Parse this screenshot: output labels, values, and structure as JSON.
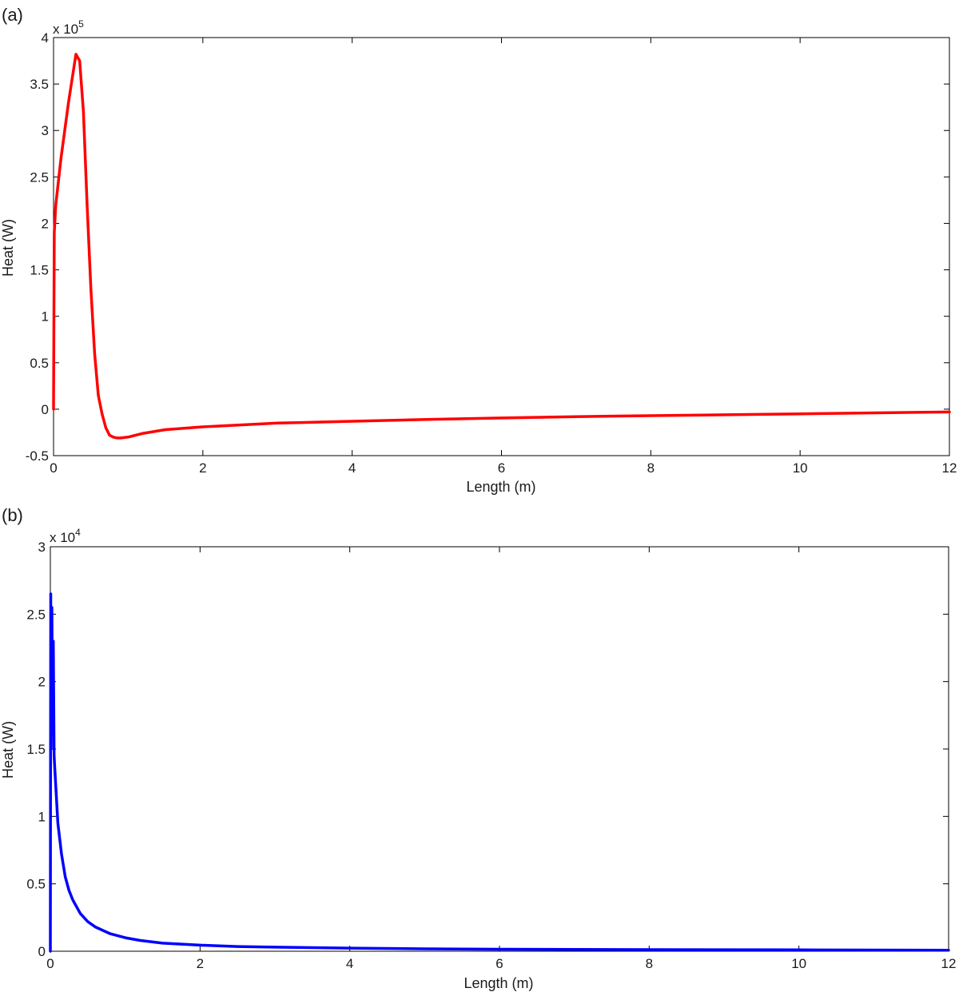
{
  "chart_data": [
    {
      "type": "line",
      "panel_label": "(a)",
      "title": "",
      "xlabel": "Length (m)",
      "ylabel": "Heat (W)",
      "y_multiplier": {
        "base": "x 10",
        "exponent": "5"
      },
      "xlim": [
        0,
        12
      ],
      "ylim": [
        -0.5,
        4
      ],
      "x_ticks": [
        0,
        2,
        4,
        6,
        8,
        10,
        12
      ],
      "x_tick_labels": [
        "0",
        "2",
        "4",
        "6",
        "8",
        "10",
        "12"
      ],
      "y_ticks": [
        -0.5,
        0,
        0.5,
        1,
        1.5,
        2,
        2.5,
        3,
        3.5,
        4
      ],
      "y_tick_labels": [
        "-0.5",
        "0",
        "0.5",
        "1",
        "1.5",
        "2",
        "2.5",
        "3",
        "3.5",
        "4"
      ],
      "grid": false,
      "color": "#ff0000",
      "series": [
        {
          "x": [
            0,
            0.01,
            0.03,
            0.1,
            0.2,
            0.3,
            0.35,
            0.4,
            0.45,
            0.5,
            0.55,
            0.6,
            0.65,
            0.7,
            0.75,
            0.8,
            0.85,
            0.9,
            1.0,
            1.2,
            1.5,
            2.0,
            3.0,
            4.0,
            5.0,
            6.0,
            7.0,
            8.0,
            9.0,
            10.0,
            11.0,
            12.0
          ],
          "y": [
            0,
            1.9,
            2.2,
            2.7,
            3.3,
            3.82,
            3.75,
            3.2,
            2.2,
            1.3,
            0.6,
            0.15,
            -0.05,
            -0.2,
            -0.28,
            -0.3,
            -0.31,
            -0.31,
            -0.3,
            -0.26,
            -0.22,
            -0.19,
            -0.15,
            -0.13,
            -0.11,
            -0.095,
            -0.08,
            -0.07,
            -0.06,
            -0.05,
            -0.04,
            -0.03
          ]
        }
      ]
    },
    {
      "type": "line",
      "panel_label": "(b)",
      "title": "",
      "xlabel": "Length (m)",
      "ylabel": "Heat (W)",
      "y_multiplier": {
        "base": "x 10",
        "exponent": "4"
      },
      "xlim": [
        0,
        12
      ],
      "ylim": [
        0,
        3
      ],
      "x_ticks": [
        0,
        2,
        4,
        6,
        8,
        10,
        12
      ],
      "x_tick_labels": [
        "0",
        "2",
        "4",
        "6",
        "8",
        "10",
        "12"
      ],
      "y_ticks": [
        0,
        0.5,
        1,
        1.5,
        2,
        2.5,
        3
      ],
      "y_tick_labels": [
        "0",
        "0.5",
        "1",
        "1.5",
        "2",
        "2.5",
        "3"
      ],
      "grid": false,
      "color": "#0000ff",
      "series": [
        {
          "x": [
            0,
            0.005,
            0.01,
            0.02,
            0.03,
            0.04,
            0.05,
            0.06,
            0.08,
            0.1,
            0.15,
            0.2,
            0.25,
            0.3,
            0.4,
            0.5,
            0.6,
            0.8,
            1.0,
            1.2,
            1.5,
            2.0,
            2.5,
            3.0,
            4.0,
            5.0,
            6.0,
            8.0,
            10.0,
            12.0
          ],
          "y": [
            0,
            2.65,
            1.5,
            2.55,
            1.65,
            2.3,
            1.45,
            1.35,
            1.15,
            0.95,
            0.72,
            0.55,
            0.45,
            0.38,
            0.28,
            0.22,
            0.18,
            0.13,
            0.1,
            0.08,
            0.06,
            0.045,
            0.035,
            0.03,
            0.023,
            0.018,
            0.015,
            0.012,
            0.01,
            0.008
          ]
        }
      ]
    }
  ]
}
